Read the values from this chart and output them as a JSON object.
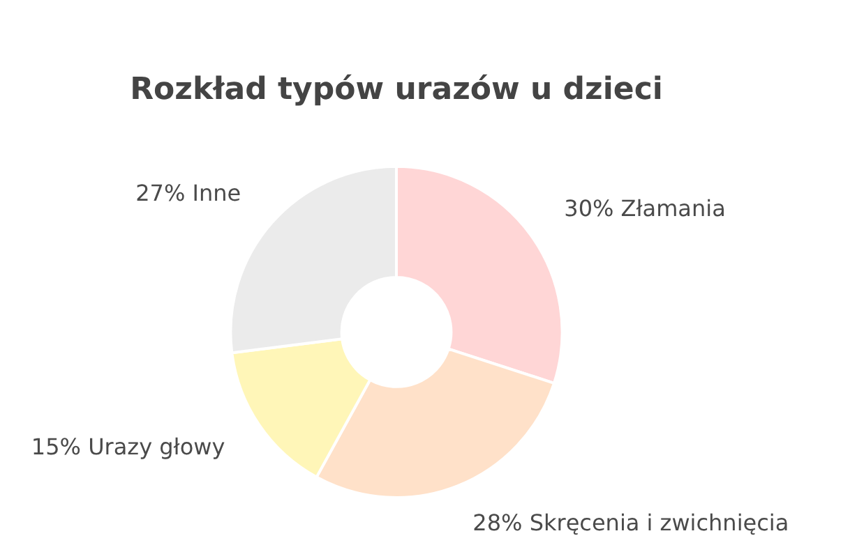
{
  "chart_data": {
    "type": "donut",
    "title": "Rozkład typów urazów u dzieci",
    "categories": [
      "Złamania",
      "Skręcenia i zwichnięcia",
      "Urazy głowy",
      "Inne"
    ],
    "values": [
      30,
      28,
      15,
      27
    ],
    "value_labels": [
      "30%",
      "28%",
      "15%",
      "27%"
    ],
    "colors": [
      "#ffd6d6",
      "#ffe1c9",
      "#fff6b8",
      "#ebebeb"
    ],
    "legend": false
  }
}
